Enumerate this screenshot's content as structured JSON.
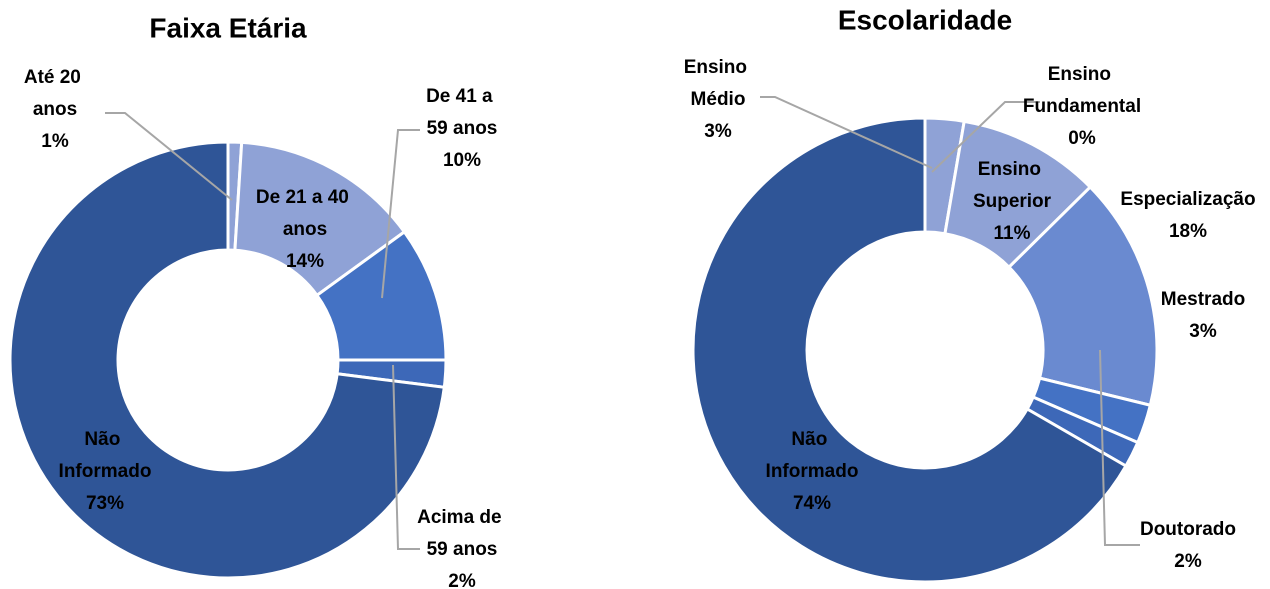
{
  "chart_data": [
    {
      "type": "donut",
      "title": "Faixa Etária",
      "categories": [
        "Até 20 anos",
        "De 21 a 40 anos",
        "De 41 a 59 anos",
        "Acima de 59 anos",
        "Não Informado"
      ],
      "values": [
        1,
        14,
        10,
        2,
        73
      ],
      "value_labels": [
        "1%",
        "14%",
        "10%",
        "2%",
        "73%"
      ],
      "colors": [
        "#8fa2d6",
        "#8fa2d6",
        "#4472c4",
        "#3d68b8",
        "#2f5597"
      ]
    },
    {
      "type": "donut",
      "title": "Escolaridade",
      "categories": [
        "Ensino Fundamental",
        "Ensino Médio",
        "Ensino Superior",
        "Especialização",
        "Mestrado",
        "Doutorado",
        "Não Informado"
      ],
      "values": [
        0,
        3,
        11,
        18,
        3,
        2,
        74
      ],
      "value_labels": [
        "0%",
        "3%",
        "11%",
        "18%",
        "3%",
        "2%",
        "74%"
      ],
      "colors": [
        "#a9b8e0",
        "#8fa2d6",
        "#8fa2d6",
        "#6a8ad0",
        "#4472c4",
        "#3d68b8",
        "#2f5597"
      ]
    }
  ]
}
